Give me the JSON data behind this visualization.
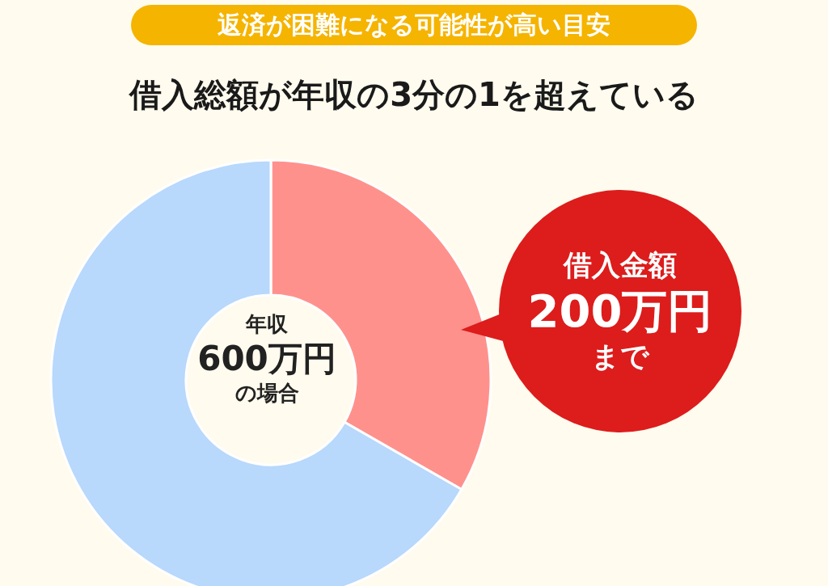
{
  "chart_data": {
    "type": "donut",
    "subtitle": "返済が困難になる可能性が高い目安",
    "title": "借入総額が年収の3分の1を超えている",
    "categories": [
      null,
      null
    ],
    "values": [
      33.3,
      66.7
    ],
    "colors": [
      "#ff918c",
      "#b8d8fc"
    ],
    "annotations": [
      "年収",
      "600万円",
      "の場合",
      "借入金額",
      "200万円",
      "まで"
    ]
  }
}
